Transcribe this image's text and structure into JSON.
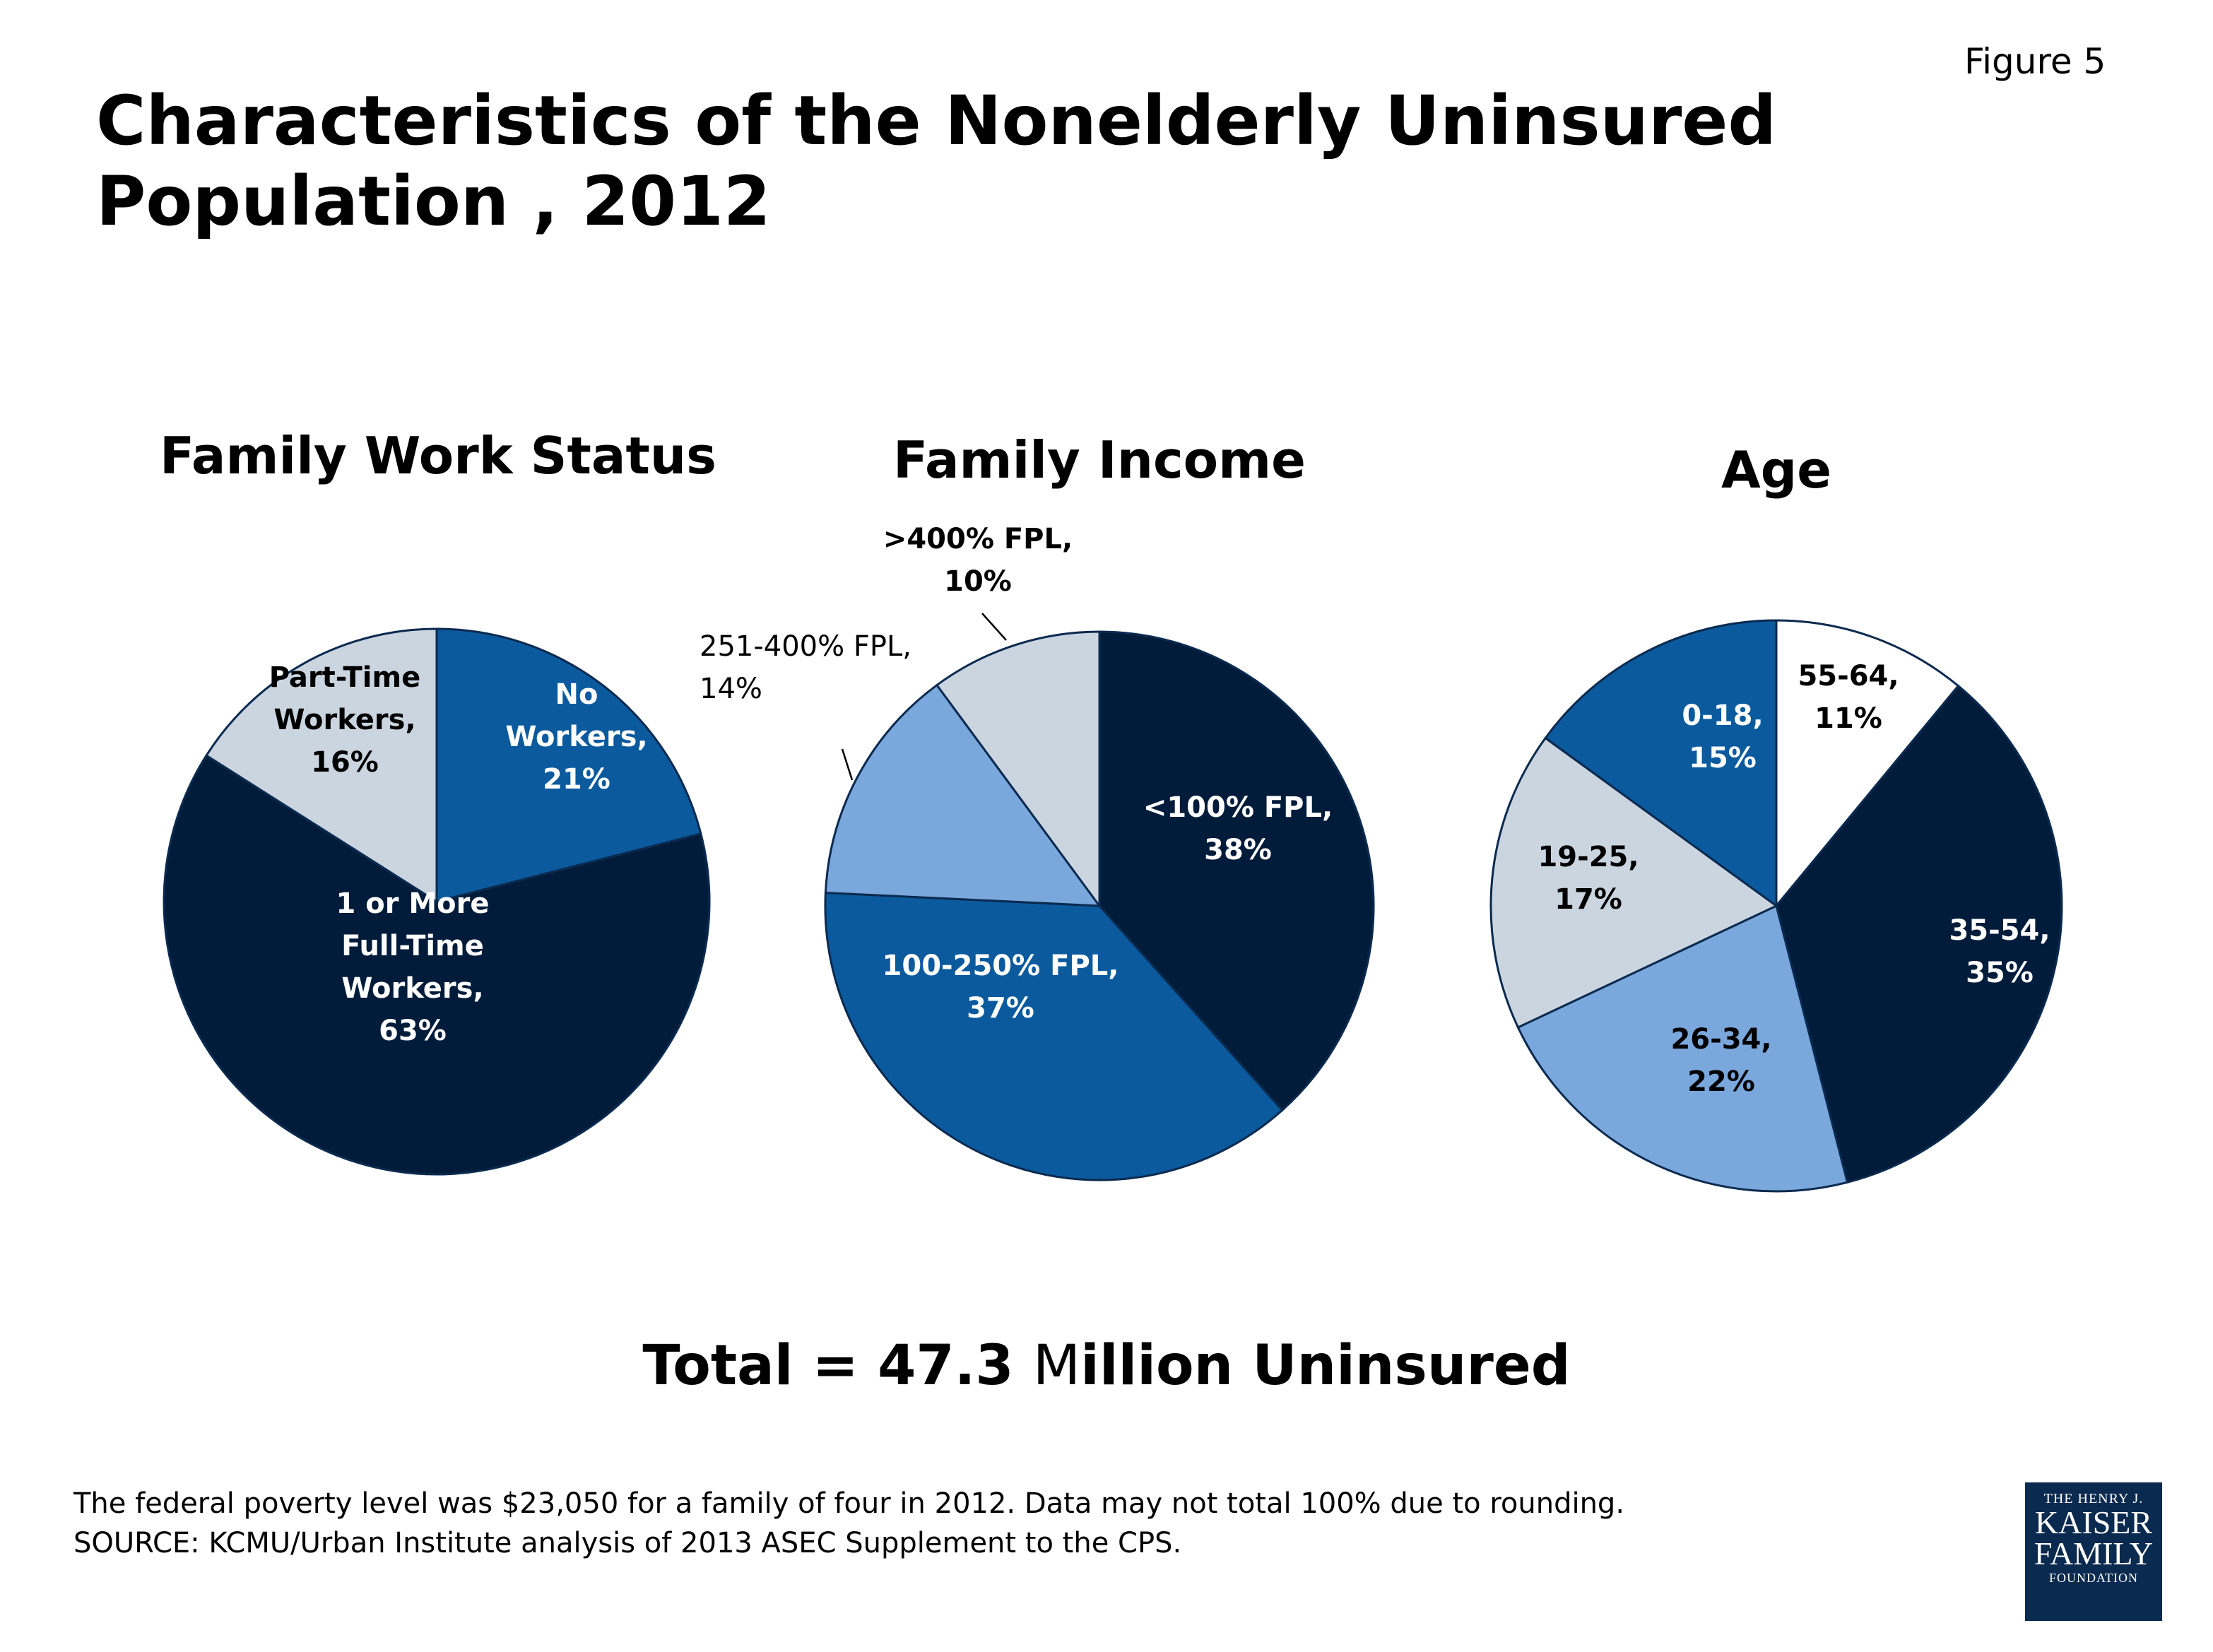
{
  "figure_label": "Figure 5",
  "title": "Characteristics of the Nonelderly Uninsured Population , 2012",
  "total": {
    "prefix": "Total = 47.3 ",
    "light_part": "M",
    "suffix": "illion Uninsured"
  },
  "footnote": {
    "line1": "The federal poverty level was $23,050 for a family of four in 2012. Data may not total 100% due to rounding.",
    "line2": "SOURCE: KCMU/Urban Institute analysis of 2013 ASEC Supplement to the CPS."
  },
  "logo": {
    "line1": "THE HENRY J.",
    "line2": "KAISER",
    "line3": "FAMILY",
    "line4": "FOUNDATION"
  },
  "colors": {
    "navy": "#011c3a",
    "blue": "#0b5a9e",
    "light_blue": "#7aa7dc",
    "gray": "#cbd5e0",
    "white": "#ffffff",
    "stroke": "#0b2a4f"
  },
  "chart_data": [
    {
      "type": "pie",
      "title": "Family Work Status",
      "slices": [
        {
          "label": [
            "No",
            "Workers,",
            "21%"
          ],
          "value": 21,
          "color": "#0b5a9e",
          "text_color": "#ffffff"
        },
        {
          "label": [
            "1 or More",
            "Full-Time",
            "Workers,",
            "63%"
          ],
          "value": 63,
          "color": "#011c3a",
          "text_color": "#ffffff"
        },
        {
          "label": [
            "Part-Time",
            "Workers,",
            "16%"
          ],
          "value": 16,
          "color": "#cbd5e0",
          "text_color": "#000000"
        }
      ]
    },
    {
      "type": "pie",
      "title": "Family Income",
      "slices": [
        {
          "label": [
            "<100% FPL,",
            "38%"
          ],
          "value": 38,
          "color": "#011c3a",
          "text_color": "#ffffff"
        },
        {
          "label": [
            "100-250% FPL,",
            "37%"
          ],
          "value": 37,
          "color": "#0b5a9e",
          "text_color": "#ffffff"
        },
        {
          "label": [
            "251-400% FPL,",
            "14%"
          ],
          "value": 14,
          "color": "#7aa7dc",
          "text_color": "#000000"
        },
        {
          "label": [
            ">400% FPL,",
            "10%"
          ],
          "value": 10,
          "color": "#cbd5e0",
          "text_color": "#000000"
        }
      ]
    },
    {
      "type": "pie",
      "title": "Age",
      "slices": [
        {
          "label": [
            "55-64,",
            "11%"
          ],
          "value": 11,
          "color": "#ffffff",
          "text_color": "#000000"
        },
        {
          "label": [
            "35-54,",
            "35%"
          ],
          "value": 35,
          "color": "#011c3a",
          "text_color": "#ffffff"
        },
        {
          "label": [
            "26-34,",
            "22%"
          ],
          "value": 22,
          "color": "#7aa7dc",
          "text_color": "#000000"
        },
        {
          "label": [
            "19-25,",
            "17%"
          ],
          "value": 17,
          "color": "#cbd5e0",
          "text_color": "#000000"
        },
        {
          "label": [
            "0-18,",
            "15%"
          ],
          "value": 15,
          "color": "#0b5a9e",
          "text_color": "#ffffff"
        }
      ]
    }
  ]
}
